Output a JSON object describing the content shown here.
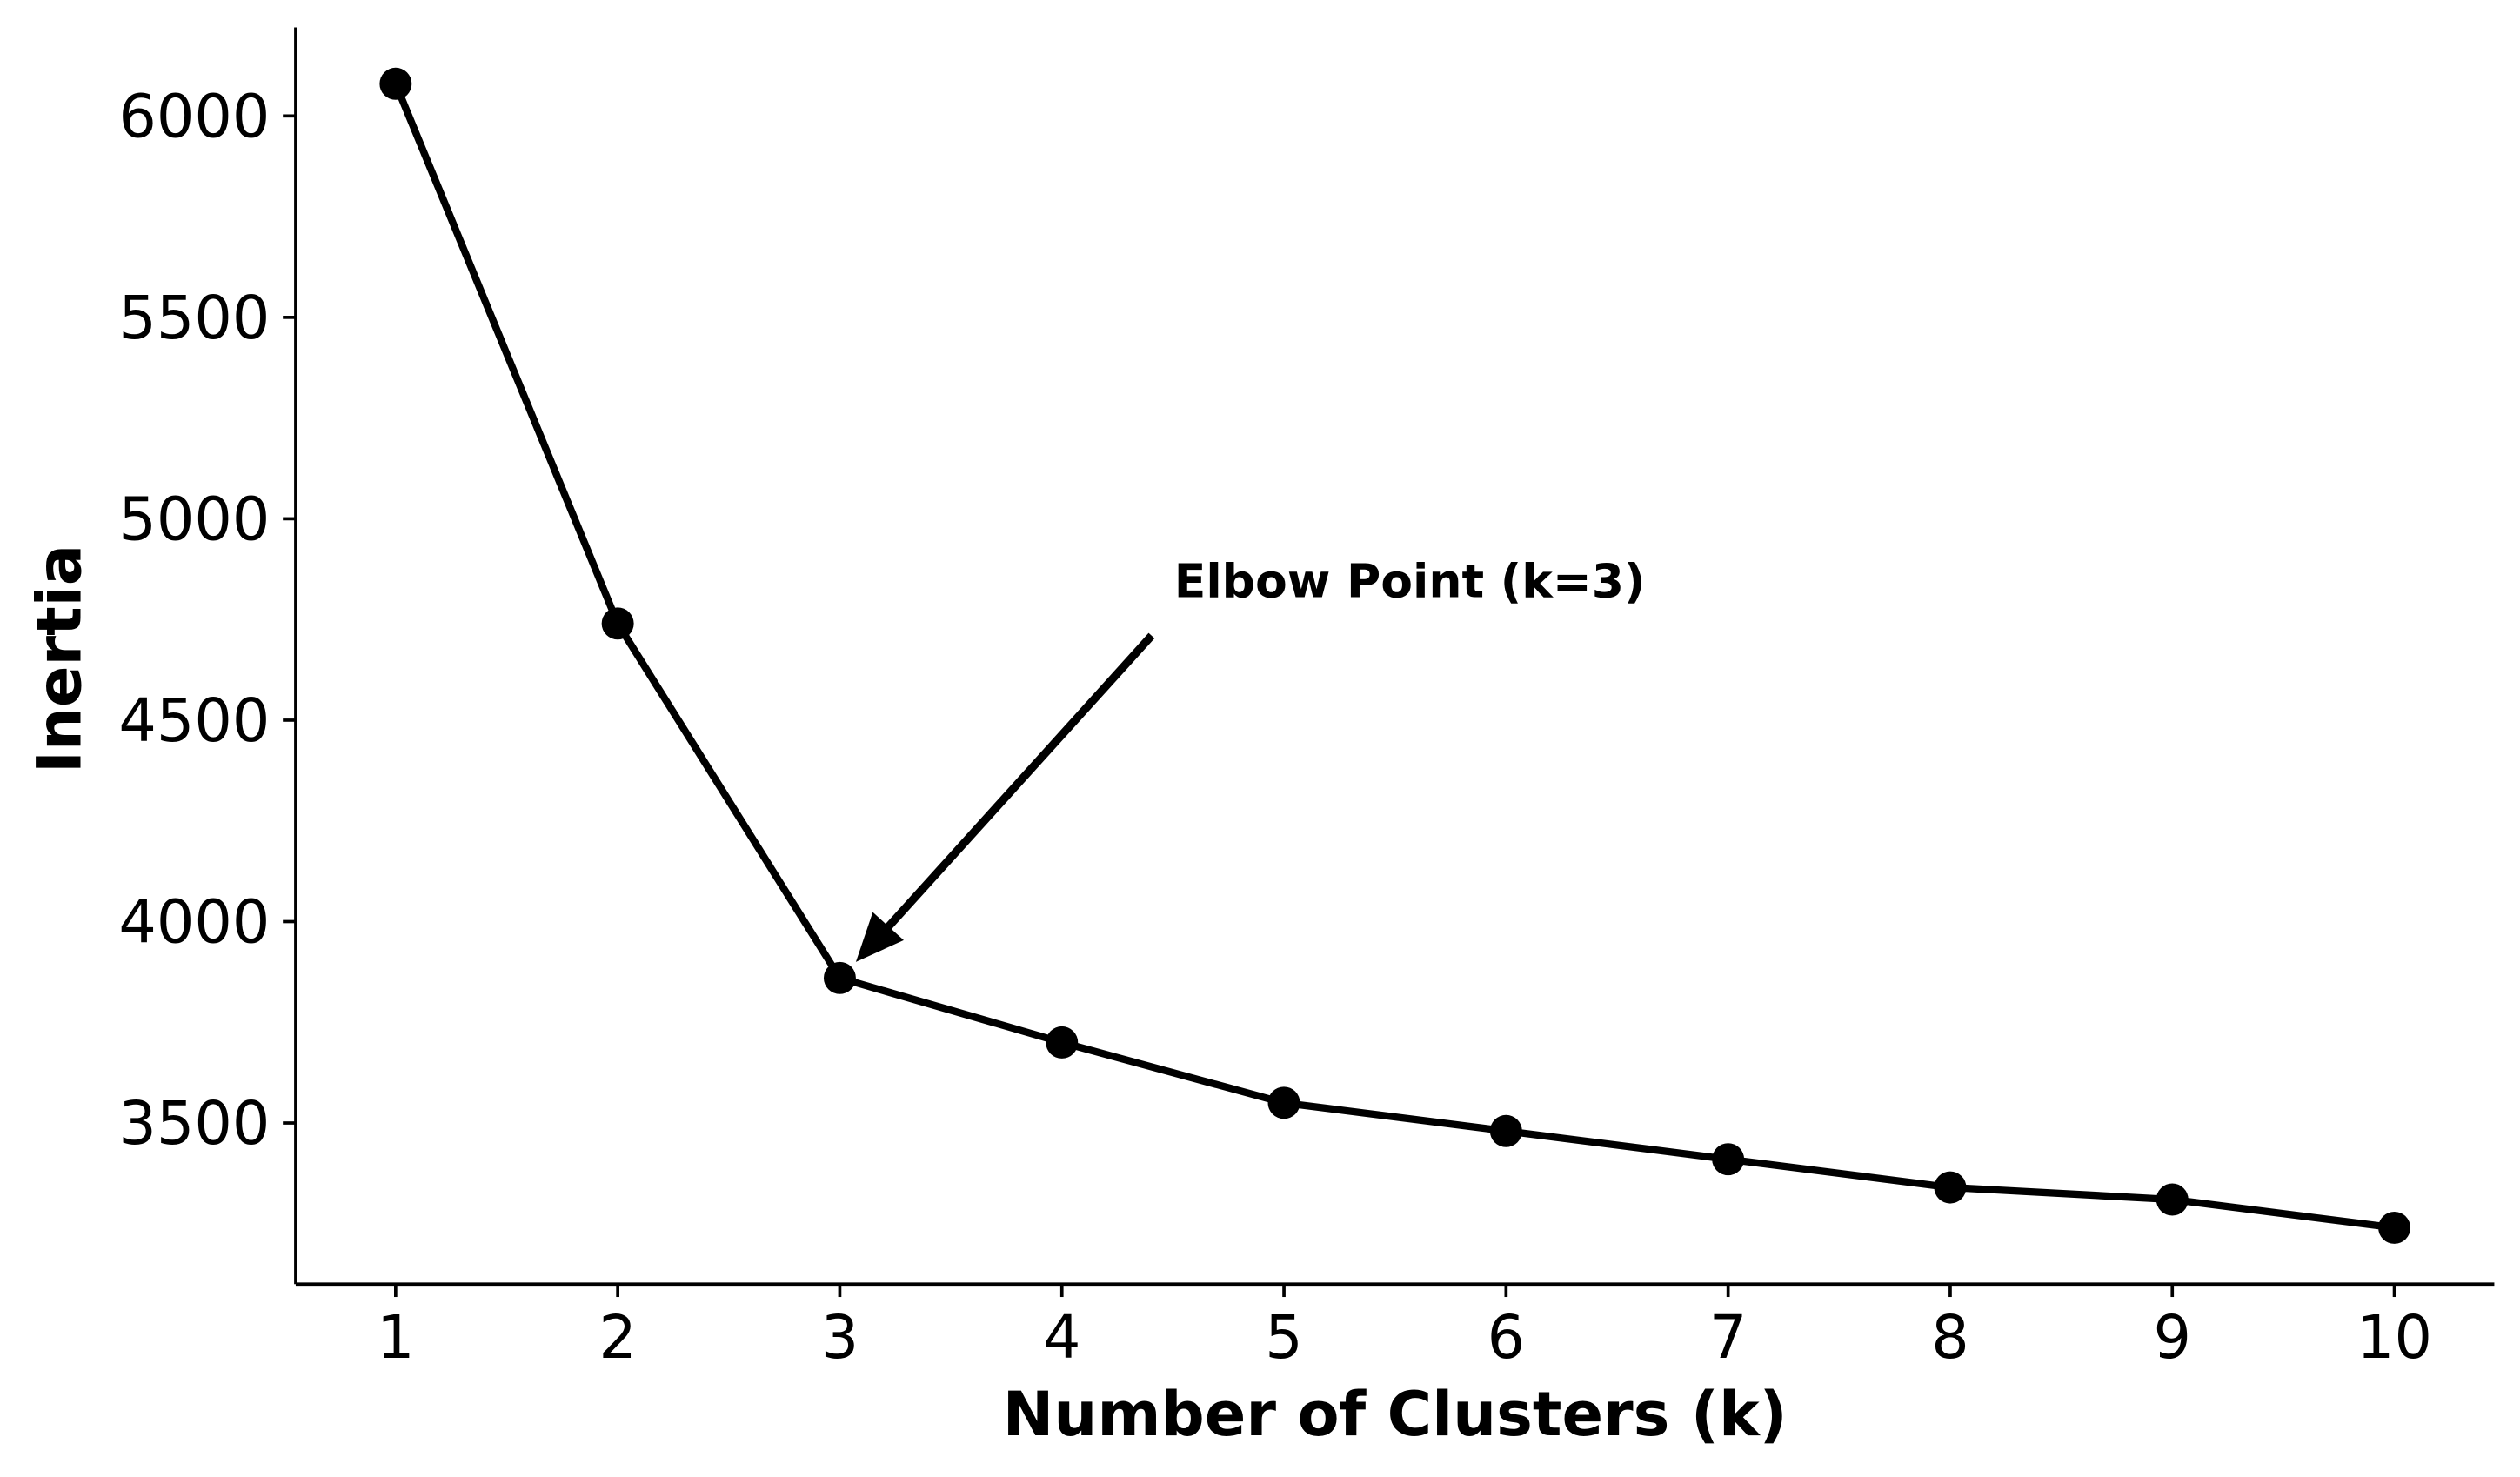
{
  "chart_data": {
    "type": "line",
    "x_label": "Number of Clusters (k)",
    "y_label": "Inertia",
    "annotation": "Elbow Point (k=3)",
    "x": [
      1,
      2,
      3,
      4,
      5,
      6,
      7,
      8,
      9,
      10
    ],
    "values": [
      6080,
      4740,
      3860,
      3700,
      3550,
      3480,
      3410,
      3340,
      3310,
      3240
    ],
    "color": "#000000",
    "xlim": [
      0.55,
      10.45
    ],
    "ylim": [
      3100,
      6220
    ],
    "xticks": [
      1,
      2,
      3,
      4,
      5,
      6,
      7,
      8,
      9,
      10
    ],
    "yticks": [
      3500,
      4000,
      4500,
      5000,
      5500,
      6000
    ]
  }
}
